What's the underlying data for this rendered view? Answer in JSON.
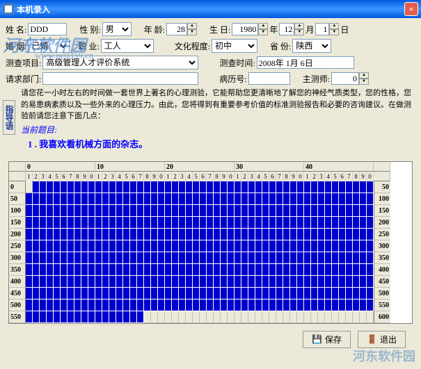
{
  "window": {
    "title": "本机录入"
  },
  "watermark": {
    "main": "河东软件园",
    "url": "www.pc0359.cn"
  },
  "form": {
    "name_label": "姓    名:",
    "name_value": "DDD",
    "gender_label": "性    别:",
    "gender_value": "男",
    "age_label": "年    龄:",
    "age_value": "28",
    "birth_label": "生    日:",
    "birth_year": "1980",
    "birth_year_suffix": "年",
    "birth_month": "12",
    "birth_month_suffix": "月",
    "birth_day": "1",
    "birth_day_suffix": "日",
    "marriage_label": "婚    烟:",
    "marriage_value": "已婚",
    "job_label": "职    业:",
    "job_value": "工人",
    "edu_label": "文化程度:",
    "edu_value": "初中",
    "province_label": "省    份:",
    "province_value": "陕西",
    "test_item_label": "测查项目:",
    "test_item_value": "高级管理人才评价系统",
    "test_time_label": "测查时间:",
    "test_time_value": "2008年 1月 6日",
    "req_dept_label": "请求部门:",
    "req_dept_value": "",
    "record_no_label": "病历号:",
    "record_no_value": "",
    "tester_label": "主测师:",
    "tester_value": "0"
  },
  "sidebar": {
    "tab_label": "指导语"
  },
  "instruction": "请您花一小时左右的时间做一套世界上著名的心理测验，它能帮助您更清晰地了解您的神经气质类型，您的性格，您的易患病素质以及一些外来的心理压力。由此，您将得到有重要参考价值的标准测验报告和必要的咨询建议。在做测验前请您注意下面几点：",
  "current": {
    "title_label": "当前题目:",
    "question": "1 . 我喜欢看机械方面的杂志。"
  },
  "grid": {
    "col_groups": [
      "0",
      "10",
      "20",
      "30",
      "40"
    ],
    "col_sub": [
      "1",
      "2",
      "3",
      "4",
      "5",
      "6",
      "7",
      "8",
      "9",
      "0"
    ],
    "row_labels_left": [
      "0",
      "50",
      "100",
      "150",
      "200",
      "250",
      "300",
      "350",
      "400",
      "450",
      "500",
      "550"
    ],
    "row_labels_right": [
      "50",
      "100",
      "150",
      "200",
      "250",
      "300",
      "350",
      "400",
      "450",
      "500",
      "550",
      "600"
    ],
    "first_row_off_count": 1,
    "last_row_on_count": 17,
    "cell_on_color": "#0000cd",
    "cell_off_color": "#ece9d8"
  },
  "buttons": {
    "save": "保存",
    "exit": "退出"
  }
}
